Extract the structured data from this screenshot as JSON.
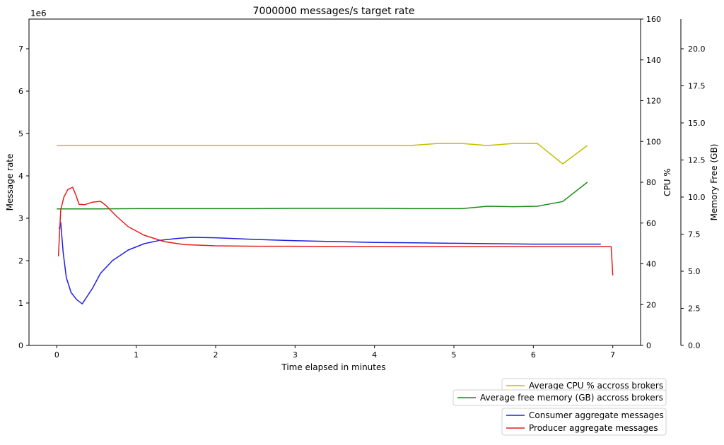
{
  "chart_data": {
    "type": "line",
    "title": "7000000 messages/s target rate",
    "xlabel": "Time elapsed in minutes",
    "ylabel": "Message rate",
    "y_offset_label": "1e6",
    "y2label": "CPU %",
    "y3label": "Memory Free (GB)",
    "xlim": [
      -0.35,
      7.35
    ],
    "ylim": [
      0,
      7.7
    ],
    "y2lim": [
      0,
      160
    ],
    "y3lim": [
      0,
      22
    ],
    "xticks": [
      "0",
      "1",
      "2",
      "3",
      "4",
      "5",
      "6",
      "7"
    ],
    "yticks": [
      "0",
      "1",
      "2",
      "3",
      "4",
      "5",
      "6",
      "7"
    ],
    "y2ticks": [
      "0",
      "20",
      "40",
      "60",
      "80",
      "100",
      "120",
      "140",
      "160"
    ],
    "y3ticks": [
      "0.0",
      "2.5",
      "5.0",
      "7.5",
      "10.0",
      "12.5",
      "15.0",
      "17.5",
      "20.0"
    ],
    "legend_placement": "below-right",
    "series": [
      {
        "name": "Average CPU % accross brokers",
        "axis": "y2",
        "color": "#bfbf00",
        "x": [
          0,
          0.5,
          1,
          1.5,
          2,
          2.5,
          3,
          3.5,
          4,
          4.45,
          4.8,
          5.1,
          5.42,
          5.75,
          6.05,
          6.37,
          6.68
        ],
        "y": [
          98,
          98,
          98,
          98,
          98,
          98,
          98,
          98,
          98,
          98,
          99,
          99,
          98,
          99,
          99,
          89,
          98
        ]
      },
      {
        "name": "Average free memory (GB) accross brokers",
        "axis": "y3",
        "color": "#1a8a1a",
        "x": [
          0,
          0.5,
          1,
          1.5,
          2,
          2.5,
          3,
          3.5,
          4,
          4.45,
          4.8,
          5.1,
          5.42,
          5.75,
          6.05,
          6.37,
          6.68
        ],
        "y": [
          9.2,
          9.2,
          9.22,
          9.22,
          9.22,
          9.22,
          9.24,
          9.24,
          9.24,
          9.22,
          9.22,
          9.22,
          9.38,
          9.35,
          9.38,
          9.7,
          11.0
        ]
      },
      {
        "name": "Consumer aggregate messages",
        "axis": "y",
        "color": "#1f1fe0",
        "x": [
          0.03,
          0.05,
          0.08,
          0.12,
          0.18,
          0.25,
          0.32,
          0.38,
          0.45,
          0.55,
          0.7,
          0.9,
          1.1,
          1.3,
          1.5,
          1.7,
          2.0,
          2.5,
          3.0,
          3.5,
          4.0,
          4.5,
          5.0,
          5.5,
          6.0,
          6.5,
          6.85
        ],
        "y": [
          2.75,
          2.9,
          2.2,
          1.6,
          1.25,
          1.08,
          0.98,
          1.15,
          1.35,
          1.7,
          2.0,
          2.25,
          2.4,
          2.48,
          2.52,
          2.55,
          2.54,
          2.5,
          2.47,
          2.45,
          2.43,
          2.42,
          2.41,
          2.4,
          2.39,
          2.39,
          2.39
        ]
      },
      {
        "name": "Producer aggregate messages",
        "axis": "y",
        "color": "#e81c1c",
        "x": [
          0.02,
          0.05,
          0.09,
          0.14,
          0.2,
          0.24,
          0.28,
          0.35,
          0.45,
          0.55,
          0.62,
          0.75,
          0.9,
          1.1,
          1.35,
          1.6,
          2.0,
          2.5,
          3.0,
          3.5,
          4.0,
          4.5,
          5.0,
          5.5,
          6.0,
          6.5,
          6.98,
          7.0
        ],
        "y": [
          2.1,
          3.2,
          3.5,
          3.68,
          3.73,
          3.55,
          3.33,
          3.32,
          3.38,
          3.4,
          3.3,
          3.05,
          2.8,
          2.6,
          2.45,
          2.38,
          2.35,
          2.34,
          2.34,
          2.33,
          2.33,
          2.33,
          2.33,
          2.33,
          2.33,
          2.33,
          2.33,
          1.65
        ]
      }
    ]
  }
}
